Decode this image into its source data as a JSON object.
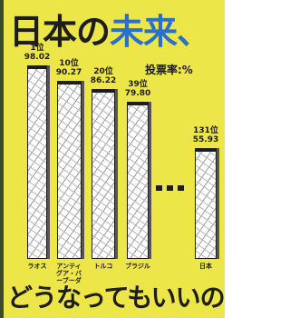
{
  "chart_data": {
    "type": "bar",
    "title": [
      "日本の",
      "未来、"
    ],
    "unit_label": "投票率:%",
    "categories": [
      "ラオス",
      "アンティグア・バーブーダ",
      "トルコ",
      "ブラジル",
      "日本"
    ],
    "ranks": [
      "1位",
      "10位",
      "20位",
      "39位",
      "131位"
    ],
    "values": [
      98.02,
      90.27,
      86.22,
      79.8,
      55.93
    ],
    "value_labels": [
      "98.02",
      "90.27",
      "86.22",
      "79.80",
      "55.93"
    ],
    "color": "#ffffff",
    "footer": "どうなってもいいの?"
  }
}
